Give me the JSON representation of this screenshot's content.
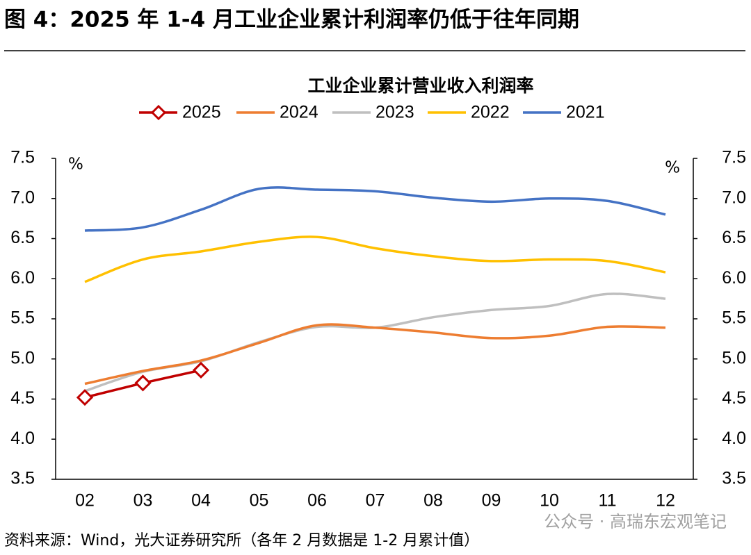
{
  "header": {
    "title": "图 4：2025 年 1-4 月工业企业累计利润率仍低于往年同期"
  },
  "chart_data": {
    "type": "line",
    "title": "工业企业累计营业收入利润率",
    "categories": [
      "02",
      "03",
      "04",
      "05",
      "06",
      "07",
      "08",
      "09",
      "10",
      "11",
      "12"
    ],
    "series": [
      {
        "name": "2025",
        "color": "#c00000",
        "values": [
          4.52,
          4.7,
          4.86,
          null,
          null,
          null,
          null,
          null,
          null,
          null,
          null
        ]
      },
      {
        "name": "2024",
        "color": "#ed7d31",
        "values": [
          4.69,
          4.85,
          4.98,
          5.2,
          5.42,
          5.39,
          5.33,
          5.26,
          5.29,
          5.4,
          5.39
        ]
      },
      {
        "name": "2023",
        "color": "#bfbfbf",
        "values": [
          4.6,
          4.84,
          4.97,
          5.21,
          5.4,
          5.39,
          5.52,
          5.61,
          5.66,
          5.81,
          5.75
        ]
      },
      {
        "name": "2022",
        "color": "#ffc000",
        "values": [
          5.96,
          6.24,
          6.34,
          6.46,
          6.52,
          6.38,
          6.28,
          6.22,
          6.24,
          6.22,
          6.08
        ]
      },
      {
        "name": "2021",
        "color": "#4472c4",
        "values": [
          6.6,
          6.64,
          6.86,
          7.12,
          7.11,
          7.09,
          7.01,
          6.96,
          7.0,
          6.97,
          6.8
        ]
      }
    ],
    "ylim": [
      3.5,
      7.5
    ],
    "yticks": [
      3.5,
      {
        "value": 4,
        "label": "4.0"
      },
      4.5,
      {
        "value": 5,
        "label": "5.0"
      },
      5.5,
      {
        "value": 6,
        "label": "6.0"
      },
      6.5,
      {
        "value": 7,
        "label": "7.0"
      },
      7.5
    ],
    "y2lim": [
      3.5,
      7.5
    ],
    "y2ticks": [
      3.5,
      {
        "value": 4,
        "label": "4.0"
      },
      4.5,
      {
        "value": 5,
        "label": "5.0"
      },
      5.5,
      {
        "value": 6,
        "label": "6.0"
      },
      6.5,
      {
        "value": 7,
        "label": "7.0"
      },
      7.5
    ],
    "y_unit": "%",
    "y2_unit": "%",
    "legend": "top",
    "grid": false
  },
  "footer": {
    "source": "资料来源：Wind，光大证券研究所（各年 2 月数据是 1-2 月累计值）",
    "watermark": "公众号 · 高瑞东宏观笔记"
  }
}
